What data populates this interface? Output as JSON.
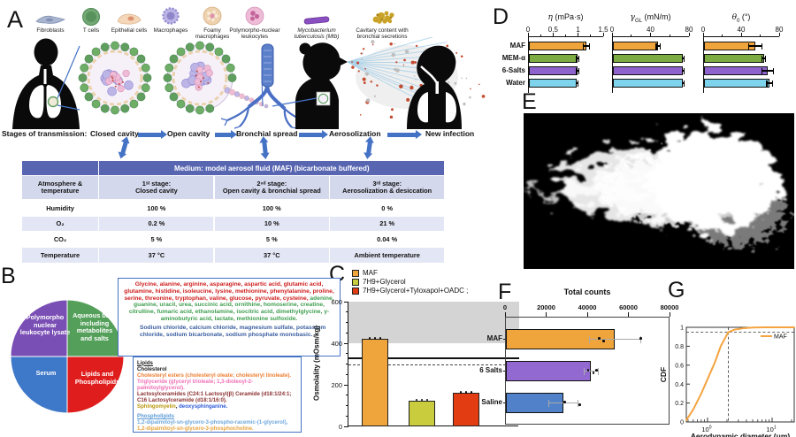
{
  "figure": {
    "panel_labels": {
      "A": "A",
      "B": "B",
      "C": "C",
      "D": "D",
      "E": "E",
      "F": "F",
      "G": "G"
    }
  },
  "panelA": {
    "cell_legend": [
      {
        "label": "Fibroblasts",
        "icon": "fibroblast-icon"
      },
      {
        "label": "T cells",
        "icon": "t-cell-icon"
      },
      {
        "label": "Epithelial cells",
        "icon": "epithelial-cell-icon"
      },
      {
        "label": "Macrophages",
        "icon": "macrophage-icon"
      },
      {
        "label": "Foamy macrophages",
        "icon": "foamy-macrophage-icon"
      },
      {
        "label": "Polymorpho-nuclear leukocytes",
        "icon": "pmn-leukocyte-icon"
      },
      {
        "label": "Mycobacterium tuberculosis (Mtb)",
        "icon": "mtb-bacillus-icon",
        "italic": true
      },
      {
        "label": "Cavitary content with bronchial secretions",
        "icon": "cavitary-content-icon"
      }
    ],
    "stages_label": "Stages of transmission:",
    "stages": [
      "Closed cavity",
      "Open cavity",
      "Bronchial spread",
      "Aerosolization",
      "New infection"
    ],
    "arrow_color": "#4472C4",
    "table": {
      "title": "Medium: model aerosol fluid (MAF) (bicarbonate buffered)",
      "corner": "Atmosphere & temperature",
      "columns": [
        "1ˢᵗ stage:\nClosed cavity",
        "2ⁿᵈ stage:\nOpen cavity & bronchial spread",
        "3ʳᵈ stage:\nAerosolization & desiccation"
      ],
      "rows": [
        {
          "label": "Humidity",
          "values": [
            "100 %",
            "100 %",
            "0 %"
          ]
        },
        {
          "label": "O₂",
          "values": [
            "0.2 %",
            "10 %",
            "21 %"
          ]
        },
        {
          "label": "CO₂",
          "values": [
            "5 %",
            "5 %",
            "0.04 %"
          ]
        },
        {
          "label": "Temperature",
          "values": [
            "37 °C",
            "37 °C",
            "Ambient temperature"
          ]
        }
      ],
      "header_color": "#5866b2",
      "subheader_color": "#d4d8ec",
      "alt_row_color": "#e3e6f4"
    }
  },
  "panelB": {
    "pie": [
      {
        "label": "Polymorpho nuclear leukocyte lysate",
        "color": "#7a4fb5"
      },
      {
        "label": "Aqueous base including metabolites and salts",
        "color": "#54a05b"
      },
      {
        "label": "Serum",
        "color": "#3e78c8"
      },
      {
        "label": "Lipids and Phospholipids",
        "color": "#e01d1d"
      }
    ],
    "metabolites_box": {
      "segments": [
        {
          "text": "Glycine, alanine, arginine, asparagine, aspartic acid, glutamic acid, glutamine, histidine, isoleucine, lysine, methionine, phenylalanine, proline, serine, threonine, tryptophan, valine, glucose, pyruvate, cysteine, ",
          "color": "#cf1d1d"
        },
        {
          "text": "adenine, guanine, uracil, urea, succinic acid, ornithine, homoserine, creatine, citrulline, fumaric acid, ethanolamine, isocitric acid, dimethylglycine, γ-aminobutyric acid, lactate, methionine sulfoxide.",
          "color": "#3f9e4f"
        }
      ],
      "salts": {
        "text": "Sodium chloride, calcium chloride, magnesium sulfate, potassium chloride, sodium bicarbonate, sodium phosphate monobasic.",
        "color": "#3c5fa0"
      }
    },
    "lipids_box": {
      "heading": {
        "text": "Lipids",
        "color": "#1a1a1a"
      },
      "lines": [
        [
          {
            "text": "Cholesterol",
            "color": "#1a1a1a"
          }
        ],
        [
          {
            "text": "Cholesteryl esters (cholesteryl oleate; cholesteryl linoleate).",
            "color": "#ed7d31"
          }
        ],
        [
          {
            "text": "Triglyceride (glyceryl trioleate; 1,3-dioleoyl-2-palmitoylglycerol).",
            "color": "#f06eb4"
          }
        ],
        [
          {
            "text": "Lactosylceramides (C24:1 Lactosyl(β) Ceramide (d18:1/24:1; C16 Lactosylceramide (d18:1/16:0).",
            "color": "#8b3030"
          }
        ],
        [
          {
            "text": "Sphingomyelin",
            "color": "#b8960c"
          },
          {
            "text": ", ",
            "color": "#1a1a1a"
          },
          {
            "text": "deoxysphinganine.",
            "color": "#2e5bd7"
          }
        ]
      ],
      "phospho_heading": {
        "text": "Phospholipids",
        "color": "#5b9bd5"
      },
      "phospho_lines": [
        [
          {
            "text": "1,2-dipalmitoyl-sn-glycero-3-phospho-racemic-(1-glycerol),",
            "color": "#6fa8dc"
          }
        ],
        [
          {
            "text": "1,2-dipalmitoyl-sn-glycero-3-phosphocholine.",
            "color": "#e8a33d"
          }
        ]
      ]
    }
  },
  "chart_data": [
    {
      "id": "C",
      "type": "bar",
      "ylabel": "Osmolality (mOsm/kg)",
      "ylim": [
        0,
        600
      ],
      "yticks": [
        0,
        200,
        400,
        600
      ],
      "minor_step": 50,
      "categories": [
        "MAF",
        "7H9+Glycerol",
        "7H9+Glycerol+Tyloxapol+OADC ;"
      ],
      "values": [
        420,
        125,
        160
      ],
      "colors": [
        "#f0a43c",
        "#c8cc3d",
        "#e23d12"
      ],
      "shaded_band": [
        400,
        600
      ],
      "band_color": "#d4d4d4",
      "ref_line_solid": 330,
      "ref_line_dashed": 300,
      "legend": [
        "MAF",
        "7H9+Glycerol",
        "7H9+Glycerol+Tyloxapol+OADC ;"
      ],
      "legend_position": "top-left"
    },
    {
      "id": "D",
      "type": "bar-horizontal-group",
      "categories": [
        "MAF",
        "MEM-α",
        "6-Salts",
        "Water"
      ],
      "colors": [
        "#f0a43c",
        "#7cac42",
        "#8e63ce",
        "#7ed4ec"
      ],
      "charts": [
        {
          "title_sym": "η",
          "title_sub": "",
          "title_unit": " (mPa·s)",
          "xlim": [
            0,
            1.5
          ],
          "xticks": [
            0,
            0.5,
            1,
            1.5
          ],
          "values": [
            1.15,
            0.97,
            0.97,
            0.96
          ],
          "errors": [
            0.06,
            0.02,
            0.02,
            0.02
          ]
        },
        {
          "title_sym": "γ",
          "title_sub": "GL",
          "title_unit": " (mN/m)",
          "xlim": [
            0,
            80
          ],
          "xticks": [
            0,
            40,
            80
          ],
          "values": [
            47,
            73,
            73,
            73
          ],
          "errors": [
            2,
            1,
            1,
            1
          ]
        },
        {
          "title_sym": "θ",
          "title_sub": "0",
          "title_unit": " (°)",
          "xlim": [
            0,
            80
          ],
          "xticks": [
            0,
            40,
            80
          ],
          "values": [
            54,
            63,
            67,
            69
          ],
          "errors": [
            7,
            2,
            6,
            3
          ]
        }
      ]
    },
    {
      "id": "F",
      "type": "bar-horizontal",
      "title": "Total counts",
      "xlim": [
        0,
        80000
      ],
      "xticks": [
        0,
        20000,
        40000,
        60000,
        80000
      ],
      "categories": [
        "MAF",
        "6 Salts",
        "Saline"
      ],
      "values": [
        53000,
        41500,
        28000
      ],
      "errors": [
        12500,
        3500,
        7000
      ],
      "scatter_points": [
        [
          45500,
          47500,
          65500
        ],
        [
          40000,
          42500,
          44000
        ],
        [
          28500,
          36000
        ]
      ],
      "colors": [
        "#f0a43c",
        "#9268d1",
        "#5181c8"
      ]
    },
    {
      "id": "G",
      "type": "line",
      "xlabel": "Aerodynamic diameter (μm)",
      "ylabel": "CDF",
      "xscale": "log",
      "xlim": [
        0.47,
        22
      ],
      "ylim": [
        0,
        1
      ],
      "yticks": [
        0,
        0.2,
        0.4,
        0.6,
        0.8,
        1
      ],
      "xticks": [
        1,
        10
      ],
      "legend": "MAF",
      "legend_position": "top-right",
      "ref_dashed": {
        "h": 0.95,
        "v": 2.1
      },
      "series": [
        {
          "name": "MAF",
          "color": "#f5a340",
          "x": [
            0.47,
            0.6,
            0.8,
            1.0,
            1.3,
            1.6,
            2.1,
            2.6,
            3.5,
            5,
            8,
            22
          ],
          "y": [
            0.02,
            0.13,
            0.3,
            0.45,
            0.63,
            0.8,
            0.95,
            0.975,
            0.99,
            0.998,
            1,
            1
          ]
        }
      ]
    }
  ]
}
